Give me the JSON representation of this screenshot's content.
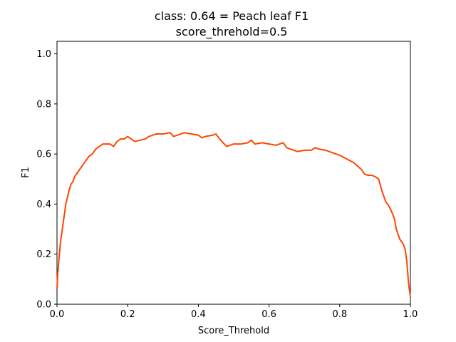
{
  "chart_data": {
    "type": "line",
    "title": "class: 0.64 = Peach leaf F1",
    "subtitle": "score_threhold=0.5",
    "xlabel": "Score_Threhold",
    "ylabel": "F1",
    "xlim": [
      0.0,
      1.0
    ],
    "ylim": [
      0.0,
      1.05
    ],
    "xticks": [
      "0.0",
      "0.2",
      "0.4",
      "0.6",
      "0.8",
      "1.0"
    ],
    "yticks": [
      "0.0",
      "0.2",
      "0.4",
      "0.6",
      "0.8",
      "1.0"
    ],
    "grid": false,
    "legend": "none",
    "series": [
      {
        "color": "#ff4500",
        "x": [
          0.0,
          0.002,
          0.005,
          0.01,
          0.015,
          0.02,
          0.025,
          0.03,
          0.035,
          0.04,
          0.045,
          0.05,
          0.055,
          0.06,
          0.065,
          0.07,
          0.075,
          0.08,
          0.085,
          0.09,
          0.1,
          0.11,
          0.12,
          0.13,
          0.14,
          0.15,
          0.16,
          0.17,
          0.18,
          0.19,
          0.2,
          0.22,
          0.25,
          0.26,
          0.28,
          0.3,
          0.32,
          0.33,
          0.35,
          0.36,
          0.38,
          0.4,
          0.41,
          0.42,
          0.44,
          0.45,
          0.46,
          0.48,
          0.5,
          0.52,
          0.54,
          0.55,
          0.56,
          0.58,
          0.6,
          0.62,
          0.64,
          0.65,
          0.66,
          0.68,
          0.7,
          0.72,
          0.73,
          0.74,
          0.76,
          0.78,
          0.8,
          0.82,
          0.84,
          0.86,
          0.87,
          0.88,
          0.89,
          0.9,
          0.91,
          0.92,
          0.93,
          0.94,
          0.95,
          0.955,
          0.96,
          0.97,
          0.98,
          0.985,
          0.99,
          0.995,
          1.0
        ],
        "y": [
          0.06,
          0.12,
          0.17,
          0.25,
          0.3,
          0.35,
          0.4,
          0.43,
          0.46,
          0.48,
          0.49,
          0.51,
          0.52,
          0.53,
          0.54,
          0.55,
          0.56,
          0.57,
          0.58,
          0.59,
          0.6,
          0.62,
          0.63,
          0.64,
          0.64,
          0.64,
          0.63,
          0.65,
          0.66,
          0.66,
          0.67,
          0.65,
          0.66,
          0.67,
          0.68,
          0.68,
          0.685,
          0.67,
          0.68,
          0.685,
          0.68,
          0.675,
          0.665,
          0.67,
          0.675,
          0.68,
          0.66,
          0.63,
          0.64,
          0.64,
          0.645,
          0.655,
          0.64,
          0.645,
          0.64,
          0.635,
          0.645,
          0.625,
          0.62,
          0.61,
          0.615,
          0.615,
          0.625,
          0.62,
          0.615,
          0.605,
          0.595,
          0.58,
          0.565,
          0.54,
          0.52,
          0.515,
          0.515,
          0.51,
          0.5,
          0.45,
          0.41,
          0.39,
          0.36,
          0.34,
          0.3,
          0.26,
          0.24,
          0.22,
          0.17,
          0.08,
          0.03
        ]
      }
    ]
  }
}
